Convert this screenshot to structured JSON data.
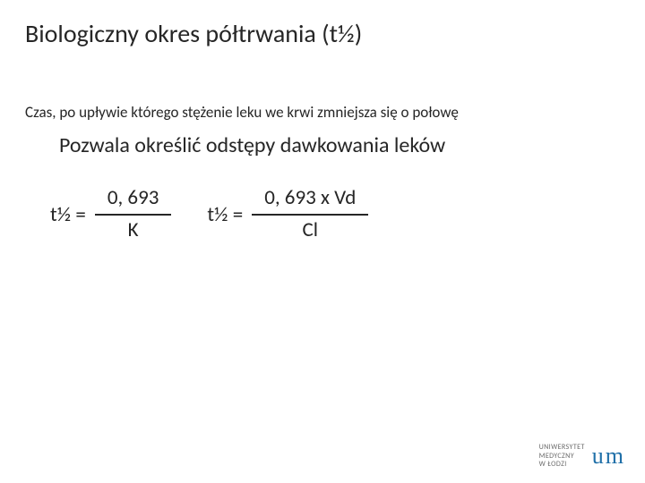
{
  "title": "Biologiczny okres półtrwania (t½)",
  "definition": "Czas, po upływie którego stężenie leku we krwi zmniejsza się o połowę",
  "subtitle": "Pozwala określić odstępy dawkowania leków",
  "formula1": {
    "lhs": "t½ =",
    "numerator": "0, 693",
    "denominator": "K"
  },
  "formula2": {
    "lhs": "t½ =",
    "numerator": "0, 693 x Vd",
    "denominator": "Cl"
  },
  "logo": {
    "line1": "UNIWERSYTET",
    "line2": "MEDYCZNY",
    "line3": "W ŁODZI",
    "mark_u": "u",
    "mark_m": "m"
  },
  "colors": {
    "text": "#262626",
    "logo_blue": "#1f6fa8",
    "logo_gray": "#6b6b6b",
    "background": "#ffffff"
  },
  "typography": {
    "title_fontsize": 28,
    "definition_fontsize": 17,
    "subtitle_fontsize": 24,
    "formula_fontsize": 23,
    "logo_text_fontsize": 8,
    "logo_mark_fontsize": 26
  }
}
